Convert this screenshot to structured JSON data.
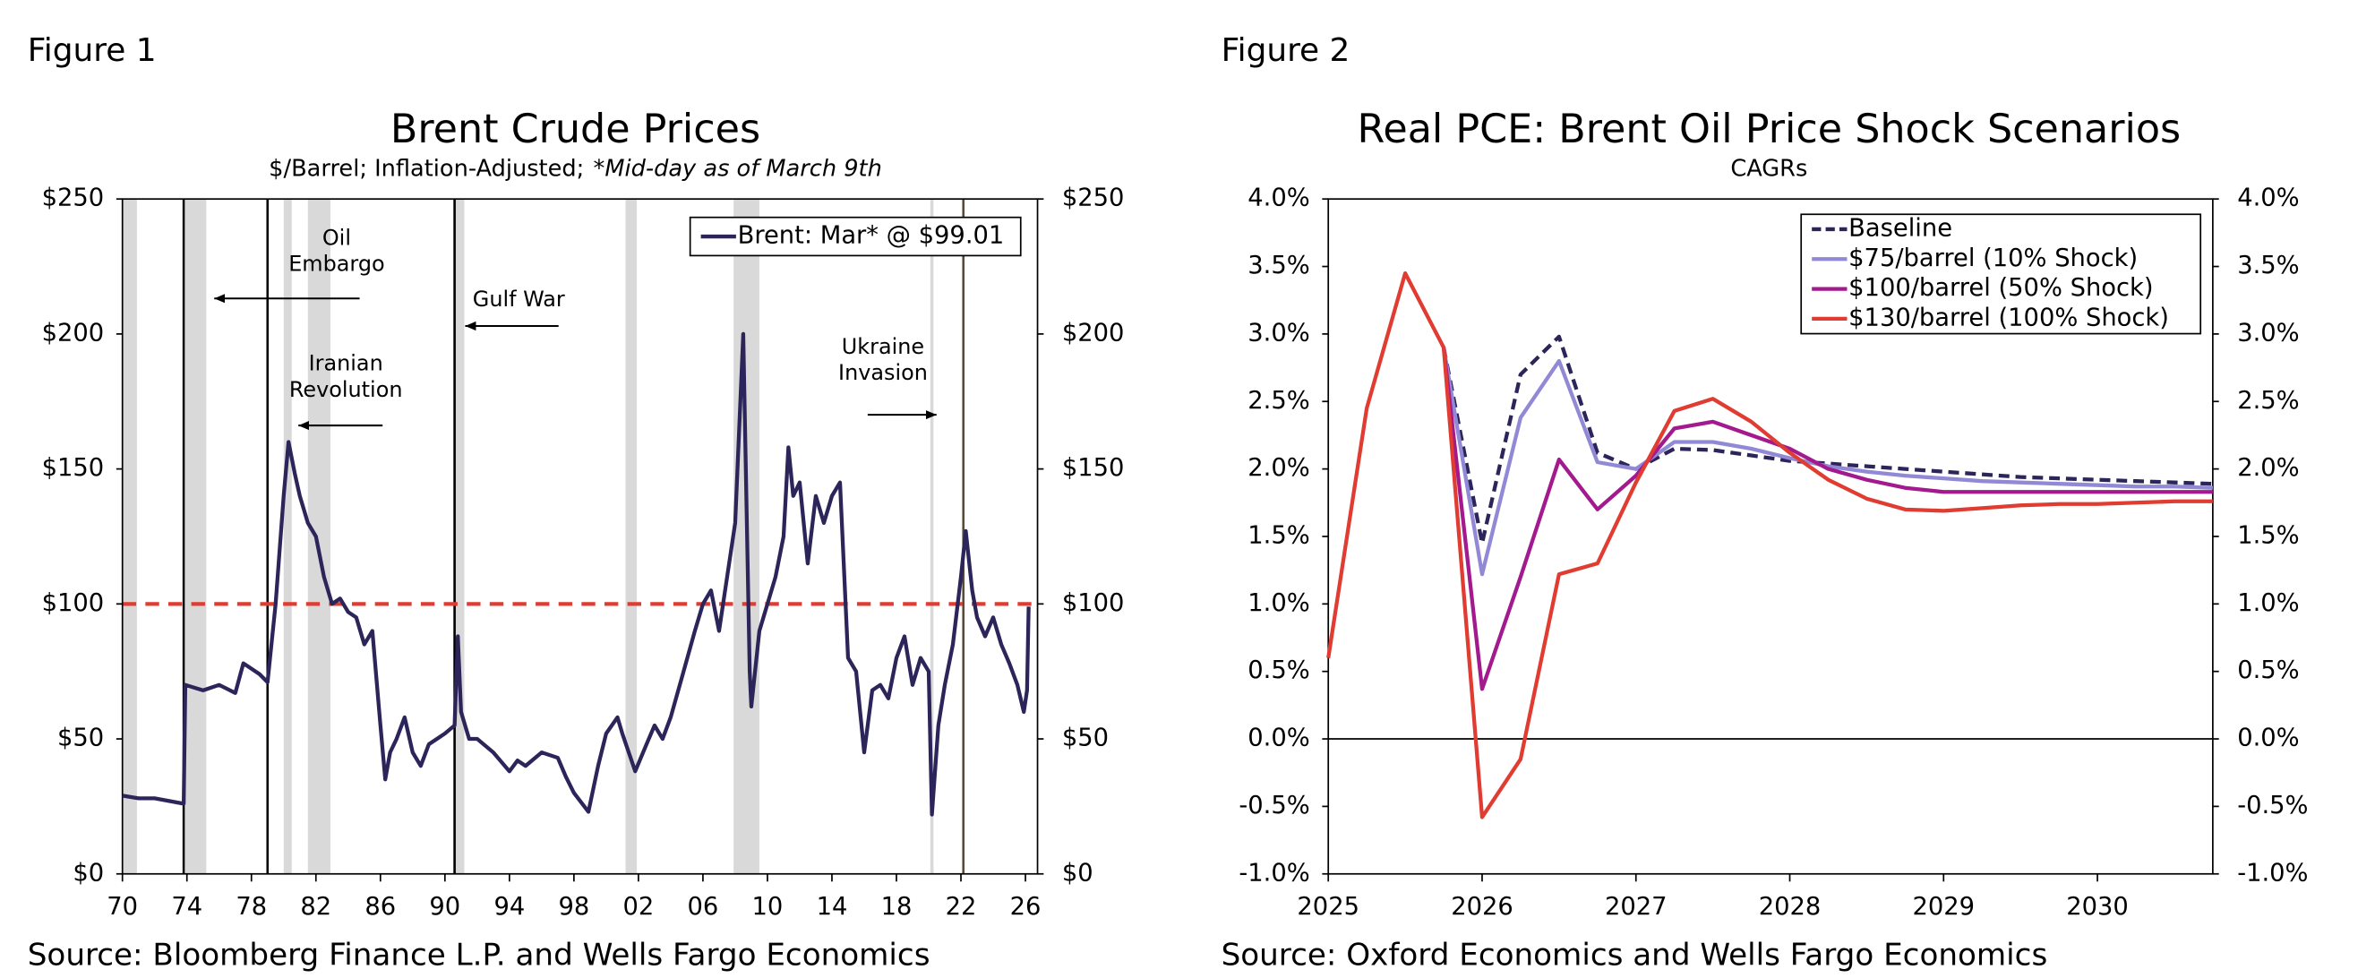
{
  "chart_data": [
    {
      "type": "line",
      "figure_label": "Figure 1",
      "title": "Brent Crude Prices",
      "subtitle": [
        "$/Barrel; Inflation-Adjusted;",
        "*Mid-day as of March 9th"
      ],
      "source": "Source: Bloomberg Finance L.P. and Wells Fargo Economics",
      "xlim": [
        1970,
        2026.75
      ],
      "xticks": [
        {
          "value": 1970,
          "label": "70"
        },
        {
          "value": 1974,
          "label": "74"
        },
        {
          "value": 1978,
          "label": "78"
        },
        {
          "value": 1982,
          "label": "82"
        },
        {
          "value": 1986,
          "label": "86"
        },
        {
          "value": 1990,
          "label": "90"
        },
        {
          "value": 1994,
          "label": "94"
        },
        {
          "value": 1998,
          "label": "98"
        },
        {
          "value": 2002,
          "label": "02"
        },
        {
          "value": 2006,
          "label": "06"
        },
        {
          "value": 2010,
          "label": "10"
        },
        {
          "value": 2014,
          "label": "14"
        },
        {
          "value": 2018,
          "label": "18"
        },
        {
          "value": 2022,
          "label": "22"
        },
        {
          "value": 2026,
          "label": "26"
        }
      ],
      "ylim": [
        0,
        250
      ],
      "yticks": [
        {
          "value": 0,
          "label": "$0"
        },
        {
          "value": 50,
          "label": "$50"
        },
        {
          "value": 100,
          "label": "$100"
        },
        {
          "value": 150,
          "label": "$150"
        },
        {
          "value": 200,
          "label": "$200"
        },
        {
          "value": 250,
          "label": "$250"
        }
      ],
      "y2lim": [
        0,
        250
      ],
      "y2ticks": [
        {
          "value": 0,
          "label": "$0"
        },
        {
          "value": 50,
          "label": "$50"
        },
        {
          "value": 100,
          "label": "$100"
        },
        {
          "value": 150,
          "label": "$150"
        },
        {
          "value": 200,
          "label": "$200"
        },
        {
          "value": 250,
          "label": "$250"
        }
      ],
      "shaded_periods": [
        [
          1970,
          1970.9
        ],
        [
          1973.9,
          1975.2
        ],
        [
          1980,
          1980.5
        ],
        [
          1981.5,
          1982.9
        ],
        [
          1990.5,
          1991.2
        ],
        [
          2001.2,
          2001.9
        ],
        [
          2007.9,
          2009.5
        ],
        [
          2020.1,
          2020.3
        ]
      ],
      "event_lines": [
        1973.8,
        1979.0,
        1990.6,
        2022.15
      ],
      "hline": 100,
      "hline_color": "#e03c31",
      "annotations": [
        {
          "lines": [
            "Oil",
            "Embargo"
          ]
        },
        {
          "lines": [
            "Iranian",
            "Revolution"
          ]
        },
        {
          "lines": [
            "Gulf War"
          ]
        },
        {
          "lines": [
            "Ukraine",
            "Invasion"
          ]
        }
      ],
      "legend": "upper right",
      "x": [
        1970,
        1971,
        1972,
        1973.8,
        1973.9,
        1975,
        1976,
        1977,
        1977.5,
        1978.5,
        1979,
        1979.5,
        1980,
        1980.3,
        1980.7,
        1981,
        1981.5,
        1982,
        1982.5,
        1983,
        1983.5,
        1984,
        1984.5,
        1985,
        1985.5,
        1986,
        1986.3,
        1986.6,
        1987,
        1987.5,
        1988,
        1988.5,
        1989,
        1989.5,
        1990,
        1990.6,
        1990.8,
        1991,
        1991.5,
        1992,
        1993,
        1994,
        1994.5,
        1995,
        1996,
        1997,
        1997.5,
        1998,
        1998.9,
        1999.5,
        2000,
        2000.7,
        2001,
        2001.8,
        2002.5,
        2003,
        2003.5,
        2004,
        2004.8,
        2005.5,
        2006,
        2006.5,
        2007,
        2007.5,
        2008,
        2008.5,
        2008.9,
        2009,
        2009.5,
        2010,
        2010.5,
        2011,
        2011.3,
        2011.6,
        2012,
        2012.5,
        2013,
        2013.5,
        2014,
        2014.5,
        2015,
        2015.5,
        2016,
        2016.5,
        2017,
        2017.5,
        2018,
        2018.5,
        2019,
        2019.5,
        2020,
        2020.2,
        2020.6,
        2021,
        2021.5,
        2022,
        2022.3,
        2022.7,
        2023,
        2023.5,
        2024,
        2024.5,
        2025,
        2025.5,
        2025.9,
        2026.1,
        2026.2
      ],
      "series": [
        {
          "name": "Brent: Mar* @ $99.01",
          "color": "#2b2559",
          "values": [
            29,
            28,
            28,
            26,
            70,
            68,
            70,
            67,
            78,
            74,
            71,
            100,
            140,
            160,
            148,
            140,
            130,
            125,
            110,
            100,
            102,
            97,
            95,
            85,
            90,
            55,
            35,
            45,
            50,
            58,
            45,
            40,
            48,
            50,
            52,
            55,
            88,
            60,
            50,
            50,
            45,
            38,
            42,
            40,
            45,
            43,
            36,
            30,
            23,
            40,
            52,
            58,
            52,
            38,
            48,
            55,
            50,
            58,
            75,
            90,
            100,
            105,
            90,
            110,
            130,
            200,
            75,
            62,
            90,
            100,
            110,
            125,
            158,
            140,
            145,
            115,
            140,
            130,
            140,
            145,
            80,
            75,
            45,
            68,
            70,
            65,
            80,
            88,
            70,
            80,
            75,
            22,
            55,
            70,
            85,
            110,
            127,
            105,
            95,
            88,
            95,
            85,
            78,
            70,
            60,
            68,
            99.01
          ]
        }
      ]
    },
    {
      "type": "line",
      "figure_label": "Figure 2",
      "title": "Real PCE: Brent Oil Price Shock Scenarios",
      "subtitle": [
        "CAGRs"
      ],
      "source": "Source: Oxford Economics and Wells Fargo Economics",
      "xlim": [
        2025,
        2030.75
      ],
      "xticks": [
        2025,
        2026,
        2027,
        2028,
        2029,
        2030
      ],
      "ylim": [
        -1,
        4
      ],
      "yticks": [
        {
          "value": -1,
          "label": "-1.0%"
        },
        {
          "value": -0.5,
          "label": "-0.5%"
        },
        {
          "value": 0,
          "label": "0.0%"
        },
        {
          "value": 0.5,
          "label": "0.5%"
        },
        {
          "value": 1,
          "label": "1.0%"
        },
        {
          "value": 1.5,
          "label": "1.5%"
        },
        {
          "value": 2,
          "label": "2.0%"
        },
        {
          "value": 2.5,
          "label": "2.5%"
        },
        {
          "value": 3,
          "label": "3.0%"
        },
        {
          "value": 3.5,
          "label": "3.5%"
        },
        {
          "value": 4,
          "label": "4.0%"
        }
      ],
      "y2lim": [
        -1,
        4
      ],
      "y2ticks": [
        {
          "value": -1,
          "label": "-1.0%"
        },
        {
          "value": -0.5,
          "label": "-0.5%"
        },
        {
          "value": 0,
          "label": "0.0%"
        },
        {
          "value": 0.5,
          "label": "0.5%"
        },
        {
          "value": 1,
          "label": "1.0%"
        },
        {
          "value": 1.5,
          "label": "1.5%"
        },
        {
          "value": 2,
          "label": "2.0%"
        },
        {
          "value": 2.5,
          "label": "2.5%"
        },
        {
          "value": 3,
          "label": "3.0%"
        },
        {
          "value": 3.5,
          "label": "3.5%"
        },
        {
          "value": 4,
          "label": "4.0%"
        }
      ],
      "hline": 0,
      "hline_color": "#000000",
      "legend": "upper right",
      "x": [
        2025,
        2025.25,
        2025.5,
        2025.75,
        2026,
        2026.25,
        2026.5,
        2026.75,
        2027,
        2027.25,
        2027.5,
        2027.75,
        2028,
        2028.25,
        2028.5,
        2028.75,
        2029,
        2029.25,
        2029.5,
        2029.75,
        2030,
        2030.25,
        2030.5,
        2030.75
      ],
      "series": [
        {
          "name": "Baseline",
          "color": "#2b2559",
          "dashed": true,
          "values": [
            null,
            null,
            null,
            2.9,
            1.45,
            2.7,
            2.98,
            2.12,
            2.0,
            2.15,
            2.14,
            2.1,
            2.06,
            2.04,
            2.02,
            2.0,
            1.98,
            1.96,
            1.94,
            1.93,
            1.92,
            1.91,
            1.9,
            1.89
          ]
        },
        {
          "name": "$75/barrel (10% Shock)",
          "color": "#9189d6",
          "values": [
            null,
            null,
            null,
            2.9,
            1.22,
            2.38,
            2.8,
            2.05,
            2.0,
            2.2,
            2.2,
            2.15,
            2.08,
            2.02,
            1.98,
            1.95,
            1.93,
            1.91,
            1.9,
            1.89,
            1.88,
            1.87,
            1.87,
            1.86
          ]
        },
        {
          "name": "$100/barrel (50% Shock)",
          "color": "#a3198e",
          "values": [
            null,
            null,
            null,
            2.9,
            0.37,
            1.2,
            2.07,
            1.7,
            1.95,
            2.3,
            2.35,
            2.25,
            2.15,
            2.0,
            1.92,
            1.86,
            1.83,
            1.83,
            1.83,
            1.83,
            1.83,
            1.83,
            1.83,
            1.83
          ]
        },
        {
          "name": "$130/barrel (100% Shock)",
          "color": "#e03c31",
          "values": [
            0.6,
            2.45,
            3.45,
            2.9,
            -0.58,
            -0.15,
            1.22,
            1.3,
            1.9,
            2.43,
            2.52,
            2.35,
            2.12,
            1.92,
            1.78,
            1.7,
            1.69,
            1.71,
            1.73,
            1.74,
            1.74,
            1.75,
            1.76,
            1.76
          ]
        }
      ]
    }
  ]
}
